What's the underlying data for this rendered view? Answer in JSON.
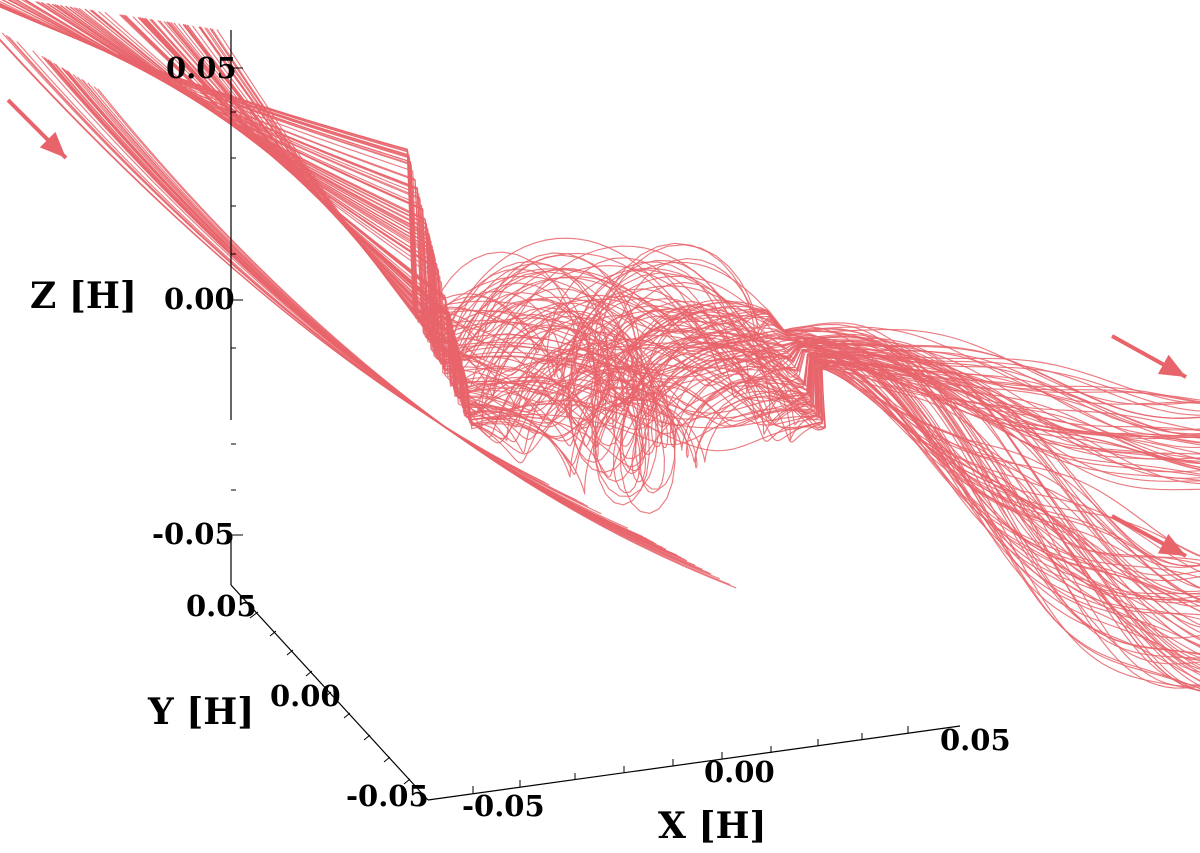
{
  "chart_data": {
    "type": "3d-streamlines",
    "title": "",
    "line_color": "#e8646b",
    "axes": {
      "x": {
        "label": "X [H]",
        "ticks": [
          "-0.05",
          "0.00",
          "0.05"
        ],
        "range": [
          -0.05,
          0.05
        ]
      },
      "y": {
        "label": "Y [H]",
        "ticks": [
          "-0.05",
          "0.00",
          "0.05"
        ],
        "range": [
          -0.05,
          0.05
        ]
      },
      "z": {
        "label": "Z [H]",
        "ticks": [
          "-0.05",
          "0.00",
          "0.05"
        ],
        "range": [
          -0.05,
          0.05
        ]
      }
    },
    "flow_direction": [
      "inflow upper-left",
      "outflow right (upper branch)",
      "outflow right (lower branch)"
    ],
    "grid": false,
    "legend": "none"
  }
}
